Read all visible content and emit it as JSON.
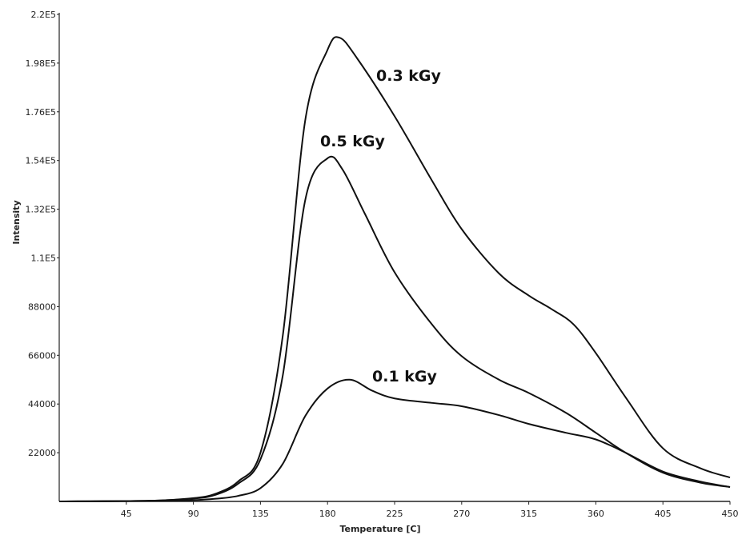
{
  "chart_data": {
    "type": "line",
    "title": "",
    "xlabel": "Temperature [C]",
    "ylabel": "Intensity",
    "xlim": [
      0,
      450
    ],
    "ylim": [
      0,
      220000
    ],
    "grid": false,
    "x_ticks": [
      45,
      90,
      135,
      180,
      225,
      270,
      315,
      360,
      405,
      450
    ],
    "x_tick_labels": [
      "45",
      "90",
      "135",
      "180",
      "225",
      "270",
      "315",
      "360",
      "405",
      "450"
    ],
    "y_ticks": [
      22000,
      44000,
      66000,
      88000,
      110000,
      132000,
      154000,
      176000,
      198000,
      220000
    ],
    "y_tick_labels": [
      "22000",
      "44000",
      "66000",
      "88000",
      "1.1E5",
      "1.32E5",
      "1.54E5",
      "1.76E5",
      "1.98E5",
      "2.2E5"
    ],
    "series": [
      {
        "name": "0.3 kGy",
        "label": "0.3 kGy",
        "x": [
          0,
          60,
          90,
          105,
          120,
          135,
          150,
          165,
          180,
          188,
          200,
          225,
          250,
          270,
          295,
          315,
          330,
          345,
          360,
          380,
          405,
          430,
          450
        ],
        "y": [
          0,
          300,
          1500,
          3500,
          9000,
          22000,
          75000,
          172000,
          204000,
          209500,
          200000,
          174000,
          145000,
          123000,
          103000,
          93000,
          87000,
          80000,
          67000,
          47000,
          24000,
          15000,
          10800
        ]
      },
      {
        "name": "0.5 kGy",
        "label": "0.5 kGy",
        "x": [
          0,
          60,
          90,
          105,
          120,
          135,
          150,
          165,
          180,
          190,
          205,
          225,
          250,
          270,
          295,
          315,
          340,
          360,
          380,
          405,
          430,
          450
        ],
        "y": [
          0,
          300,
          1300,
          3000,
          8000,
          19000,
          57000,
          136000,
          155000,
          150000,
          130000,
          103500,
          80000,
          65600,
          55000,
          49000,
          40000,
          31000,
          22000,
          13000,
          8500,
          6500
        ]
      },
      {
        "name": "0.1 kGy",
        "label": "0.1 kGy",
        "x": [
          0,
          60,
          90,
          105,
          120,
          135,
          150,
          165,
          180,
          195,
          210,
          225,
          250,
          270,
          295,
          315,
          340,
          360,
          380,
          405,
          430,
          450
        ],
        "y": [
          0,
          200,
          600,
          1200,
          2500,
          6000,
          17000,
          38500,
          51000,
          55000,
          50000,
          46500,
          44500,
          43000,
          39000,
          35000,
          31000,
          28000,
          22000,
          13500,
          9000,
          6500
        ]
      }
    ]
  }
}
